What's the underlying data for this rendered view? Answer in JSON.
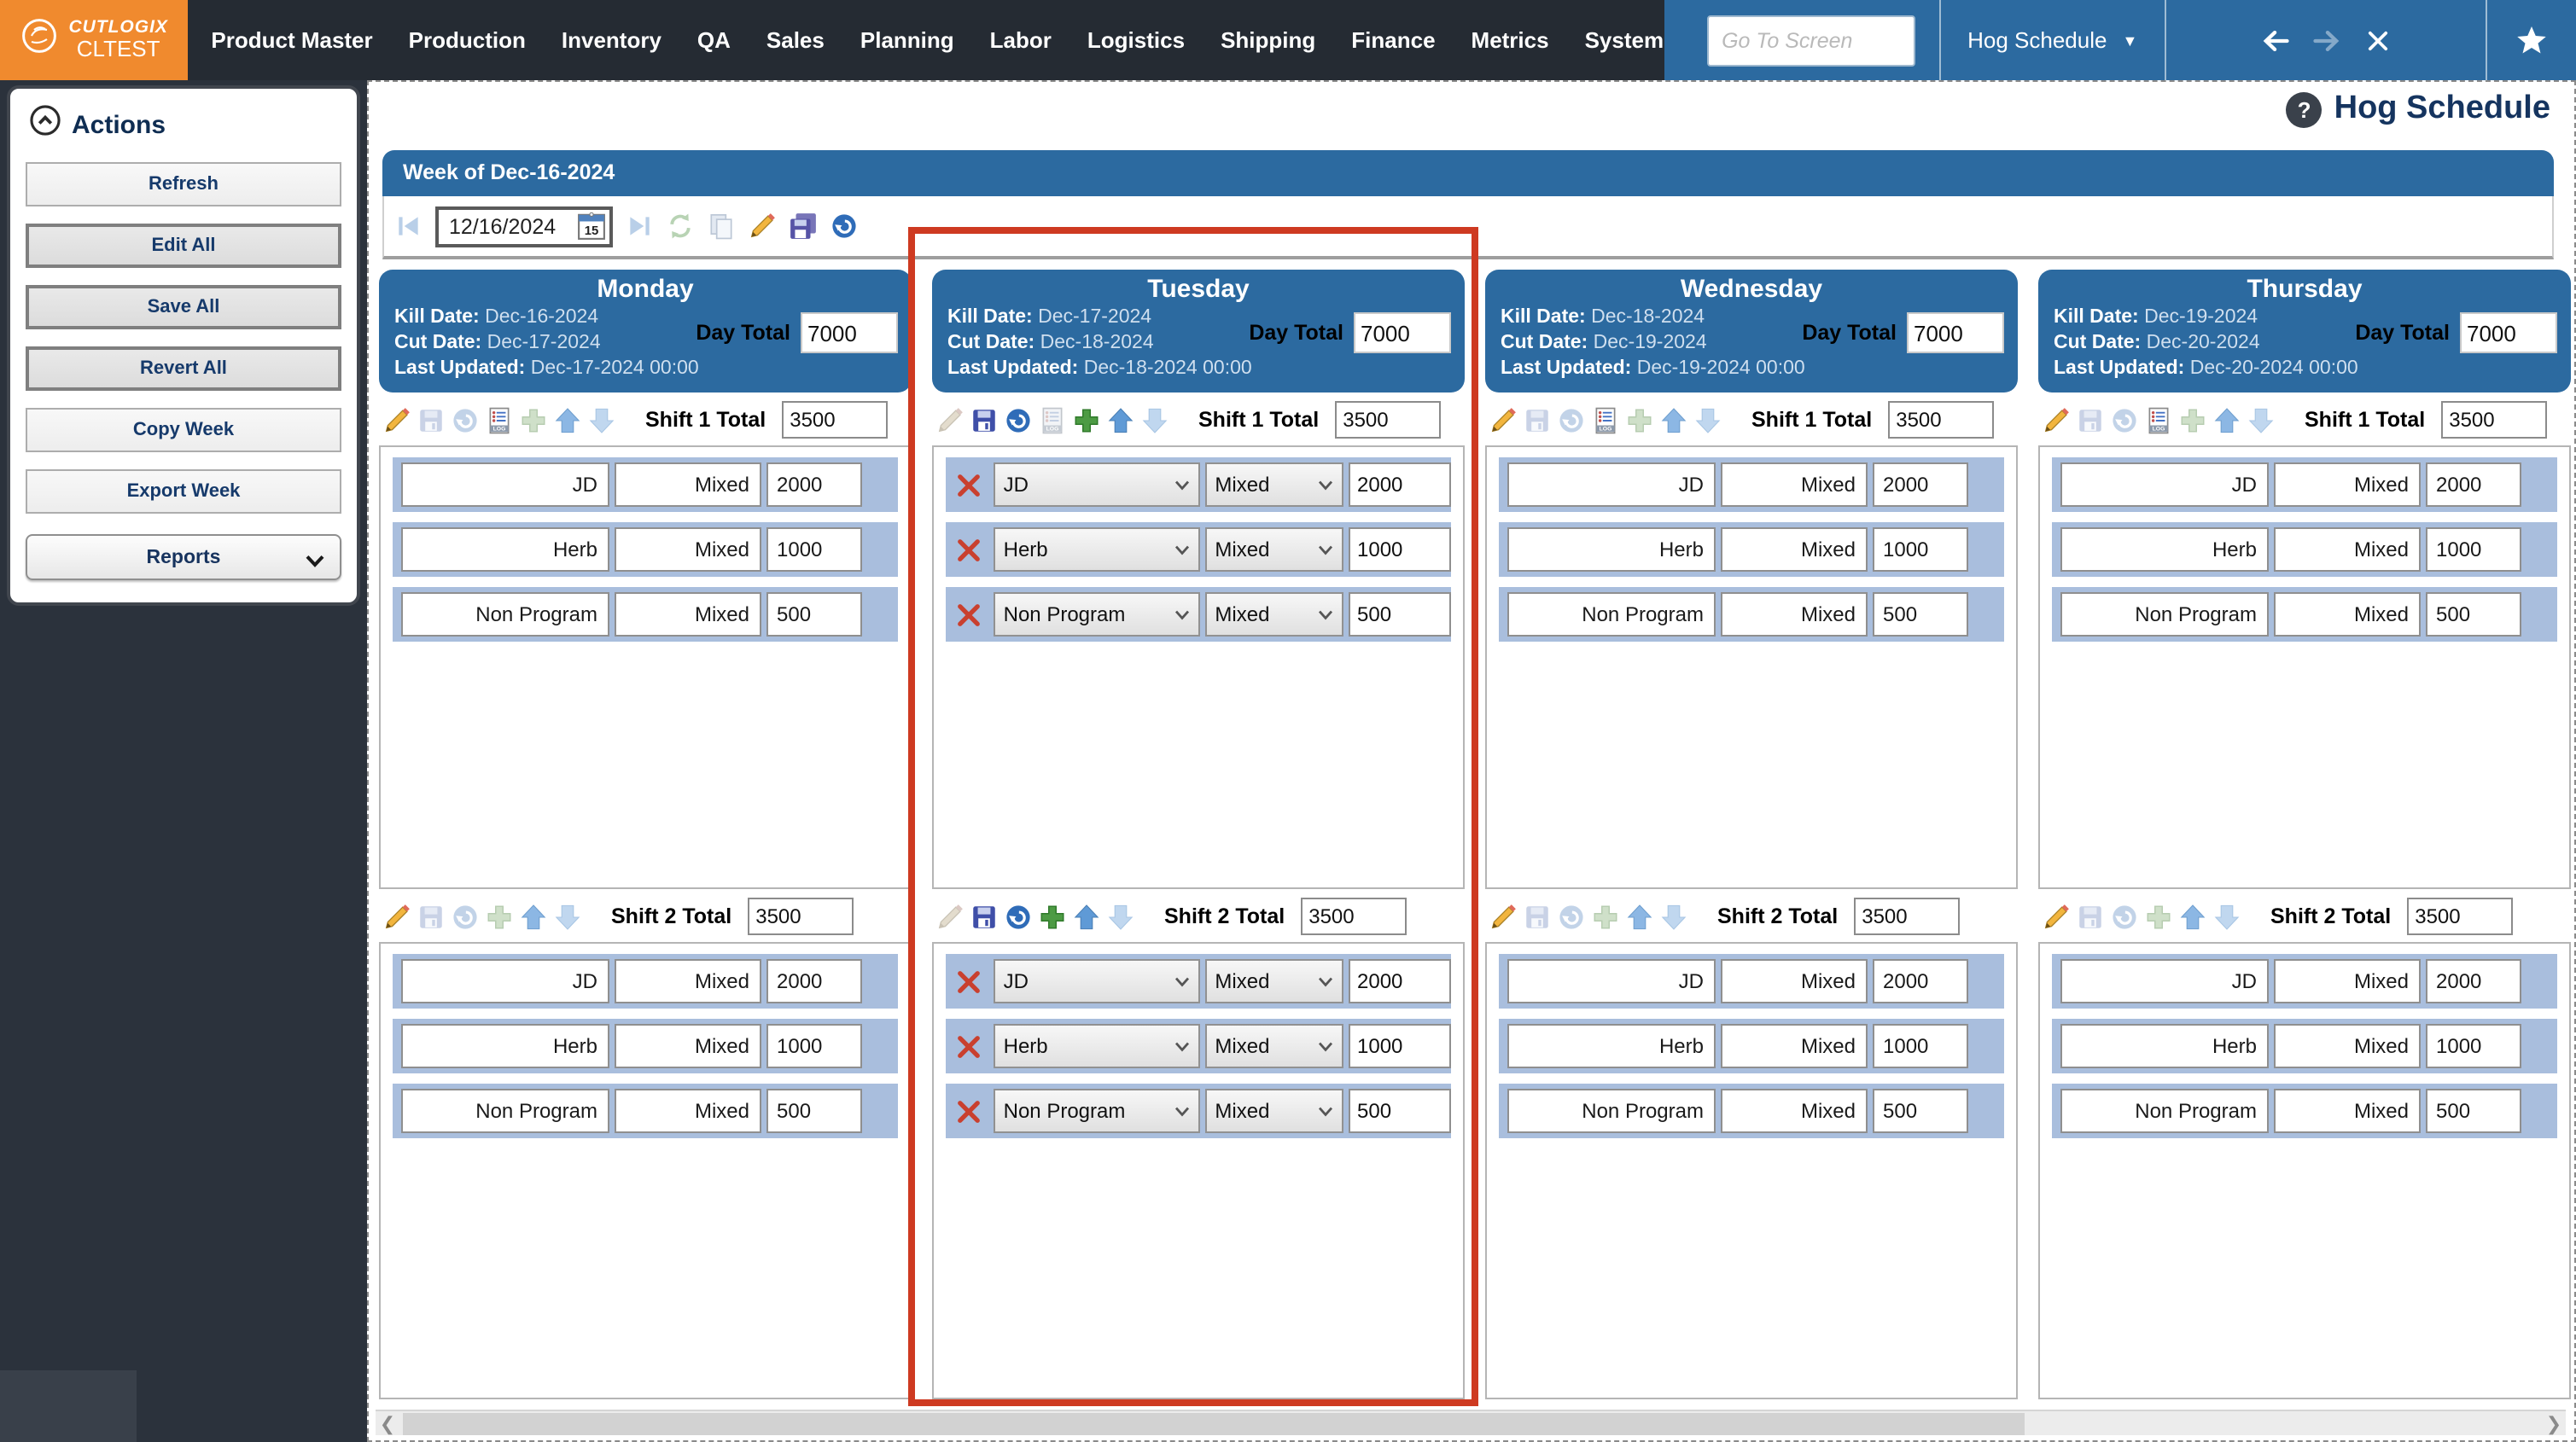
{
  "navbar": {
    "brand_line1": "CUTLOGIX",
    "brand_line2": "CLTEST",
    "menu": [
      "Product Master",
      "Production",
      "Inventory",
      "QA",
      "Sales",
      "Planning",
      "Labor",
      "Logistics",
      "Shipping",
      "Finance",
      "Metrics",
      "System"
    ],
    "go_to_screen_placeholder": "Go To Screen",
    "screen_selector": "Hog Schedule"
  },
  "sidebar": {
    "title": "Actions",
    "buttons": [
      {
        "label": "Refresh",
        "emphasis": false
      },
      {
        "label": "Edit All",
        "emphasis": true
      },
      {
        "label": "Save All",
        "emphasis": true
      },
      {
        "label": "Revert All",
        "emphasis": true
      },
      {
        "label": "Copy Week",
        "emphasis": false
      },
      {
        "label": "Export Week",
        "emphasis": false
      }
    ],
    "reports_label": "Reports"
  },
  "page": {
    "title": "Hog Schedule",
    "week_header": "Week of Dec-16-2024",
    "toolbar": {
      "date_value": "12/16/2024",
      "calendar_day": "15",
      "icons": [
        {
          "name": "skip-previous",
          "state": "off"
        },
        {
          "name": "date-input",
          "state": "field"
        },
        {
          "name": "skip-next",
          "state": "off"
        },
        {
          "name": "refresh",
          "state": "off"
        },
        {
          "name": "copy",
          "state": "off"
        },
        {
          "name": "edit",
          "state": "on"
        },
        {
          "name": "save-all",
          "state": "on"
        },
        {
          "name": "revert",
          "state": "on"
        }
      ]
    }
  },
  "labels": {
    "kill_date": "Kill Date:",
    "cut_date": "Cut Date:",
    "last_updated": "Last Updated:",
    "day_total": "Day Total"
  },
  "colors": {
    "accent_blue": "#2c6aa0",
    "navbar_dark": "#252b33",
    "brand_orange": "#f08a2e",
    "row_blue": "#a9bedd",
    "highlight_red": "#ce3a21"
  },
  "days": [
    {
      "name": "Monday",
      "kill_date": "Dec-16-2024",
      "cut_date": "Dec-17-2024",
      "last_updated": "Dec-17-2024 00:00",
      "day_total": "7000",
      "editable": false,
      "highlighted": false,
      "shifts": [
        {
          "label": "Shift 1 Total",
          "total": "3500",
          "icons": [
            {
              "name": "edit",
              "state": "on"
            },
            {
              "name": "save",
              "state": "off"
            },
            {
              "name": "revert",
              "state": "off"
            },
            {
              "name": "log",
              "state": "on"
            },
            {
              "name": "add",
              "state": "off"
            },
            {
              "name": "move-up",
              "state": "mid"
            },
            {
              "name": "move-down",
              "state": "off"
            }
          ],
          "rows": [
            {
              "program": "JD",
              "type": "Mixed",
              "qty": "2000"
            },
            {
              "program": "Herb",
              "type": "Mixed",
              "qty": "1000"
            },
            {
              "program": "Non Program",
              "type": "Mixed",
              "qty": "500"
            }
          ]
        },
        {
          "label": "Shift 2 Total",
          "total": "3500",
          "icons": [
            {
              "name": "edit",
              "state": "on"
            },
            {
              "name": "save",
              "state": "off"
            },
            {
              "name": "revert",
              "state": "off"
            },
            {
              "name": "add",
              "state": "off"
            },
            {
              "name": "move-up",
              "state": "mid"
            },
            {
              "name": "move-down",
              "state": "off"
            }
          ],
          "rows": [
            {
              "program": "JD",
              "type": "Mixed",
              "qty": "2000"
            },
            {
              "program": "Herb",
              "type": "Mixed",
              "qty": "1000"
            },
            {
              "program": "Non Program",
              "type": "Mixed",
              "qty": "500"
            }
          ]
        }
      ]
    },
    {
      "name": "Tuesday",
      "kill_date": "Dec-17-2024",
      "cut_date": "Dec-18-2024",
      "last_updated": "Dec-18-2024 00:00",
      "day_total": "7000",
      "editable": true,
      "highlighted": true,
      "shifts": [
        {
          "label": "Shift 1 Total",
          "total": "3500",
          "icons": [
            {
              "name": "edit",
              "state": "off"
            },
            {
              "name": "save",
              "state": "on"
            },
            {
              "name": "revert",
              "state": "on"
            },
            {
              "name": "log",
              "state": "off"
            },
            {
              "name": "add",
              "state": "on"
            },
            {
              "name": "move-up",
              "state": "on"
            },
            {
              "name": "move-down",
              "state": "off"
            }
          ],
          "rows": [
            {
              "program": "JD",
              "type": "Mixed",
              "qty": "2000"
            },
            {
              "program": "Herb",
              "type": "Mixed",
              "qty": "1000"
            },
            {
              "program": "Non Program",
              "type": "Mixed",
              "qty": "500"
            }
          ]
        },
        {
          "label": "Shift 2 Total",
          "total": "3500",
          "icons": [
            {
              "name": "edit",
              "state": "off"
            },
            {
              "name": "save",
              "state": "on"
            },
            {
              "name": "revert",
              "state": "on"
            },
            {
              "name": "add",
              "state": "on"
            },
            {
              "name": "move-up",
              "state": "on"
            },
            {
              "name": "move-down",
              "state": "off"
            }
          ],
          "rows": [
            {
              "program": "JD",
              "type": "Mixed",
              "qty": "2000"
            },
            {
              "program": "Herb",
              "type": "Mixed",
              "qty": "1000"
            },
            {
              "program": "Non Program",
              "type": "Mixed",
              "qty": "500"
            }
          ]
        }
      ]
    },
    {
      "name": "Wednesday",
      "kill_date": "Dec-18-2024",
      "cut_date": "Dec-19-2024",
      "last_updated": "Dec-19-2024 00:00",
      "day_total": "7000",
      "editable": false,
      "highlighted": false,
      "shifts": [
        {
          "label": "Shift 1 Total",
          "total": "3500",
          "icons": [
            {
              "name": "edit",
              "state": "on"
            },
            {
              "name": "save",
              "state": "off"
            },
            {
              "name": "revert",
              "state": "off"
            },
            {
              "name": "log",
              "state": "on"
            },
            {
              "name": "add",
              "state": "off"
            },
            {
              "name": "move-up",
              "state": "mid"
            },
            {
              "name": "move-down",
              "state": "off"
            }
          ],
          "rows": [
            {
              "program": "JD",
              "type": "Mixed",
              "qty": "2000"
            },
            {
              "program": "Herb",
              "type": "Mixed",
              "qty": "1000"
            },
            {
              "program": "Non Program",
              "type": "Mixed",
              "qty": "500"
            }
          ]
        },
        {
          "label": "Shift 2 Total",
          "total": "3500",
          "icons": [
            {
              "name": "edit",
              "state": "on"
            },
            {
              "name": "save",
              "state": "off"
            },
            {
              "name": "revert",
              "state": "off"
            },
            {
              "name": "add",
              "state": "off"
            },
            {
              "name": "move-up",
              "state": "mid"
            },
            {
              "name": "move-down",
              "state": "off"
            }
          ],
          "rows": [
            {
              "program": "JD",
              "type": "Mixed",
              "qty": "2000"
            },
            {
              "program": "Herb",
              "type": "Mixed",
              "qty": "1000"
            },
            {
              "program": "Non Program",
              "type": "Mixed",
              "qty": "500"
            }
          ]
        }
      ]
    },
    {
      "name": "Thursday",
      "kill_date": "Dec-19-2024",
      "cut_date": "Dec-20-2024",
      "last_updated": "Dec-20-2024 00:00",
      "day_total": "7000",
      "editable": false,
      "highlighted": false,
      "shifts": [
        {
          "label": "Shift 1 Total",
          "total": "3500",
          "icons": [
            {
              "name": "edit",
              "state": "on"
            },
            {
              "name": "save",
              "state": "off"
            },
            {
              "name": "revert",
              "state": "off"
            },
            {
              "name": "log",
              "state": "on"
            },
            {
              "name": "add",
              "state": "off"
            },
            {
              "name": "move-up",
              "state": "mid"
            },
            {
              "name": "move-down",
              "state": "off"
            }
          ],
          "rows": [
            {
              "program": "JD",
              "type": "Mixed",
              "qty": "2000"
            },
            {
              "program": "Herb",
              "type": "Mixed",
              "qty": "1000"
            },
            {
              "program": "Non Program",
              "type": "Mixed",
              "qty": "500"
            }
          ]
        },
        {
          "label": "Shift 2 Total",
          "total": "3500",
          "icons": [
            {
              "name": "edit",
              "state": "on"
            },
            {
              "name": "save",
              "state": "off"
            },
            {
              "name": "revert",
              "state": "off"
            },
            {
              "name": "add",
              "state": "off"
            },
            {
              "name": "move-up",
              "state": "mid"
            },
            {
              "name": "move-down",
              "state": "off"
            }
          ],
          "rows": [
            {
              "program": "JD",
              "type": "Mixed",
              "qty": "2000"
            },
            {
              "program": "Herb",
              "type": "Mixed",
              "qty": "1000"
            },
            {
              "program": "Non Program",
              "type": "Mixed",
              "qty": "500"
            }
          ]
        }
      ]
    }
  ]
}
